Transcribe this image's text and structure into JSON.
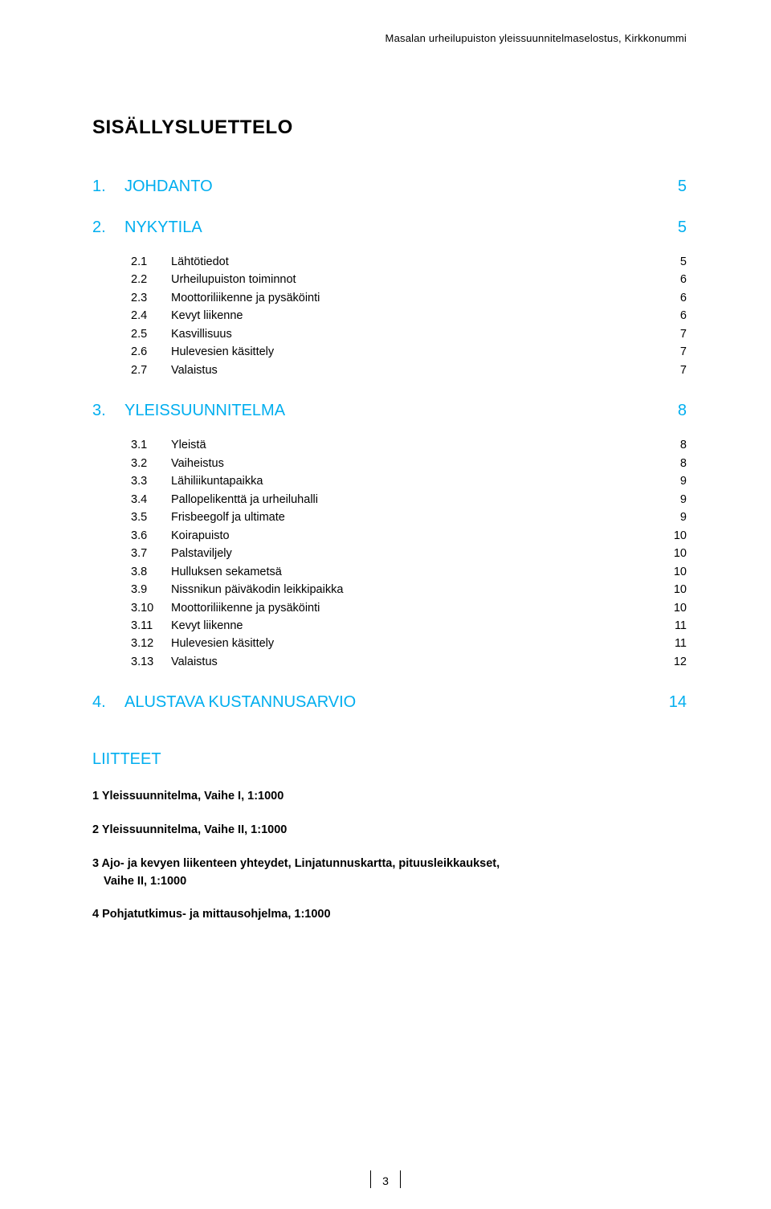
{
  "running_head": "Masalan urheilupuiston yleissuunnitelmaselostus, Kirkkonummi",
  "toc_title": "SISÄLLYSLUETTELO",
  "colors": {
    "accent": "#00aeef",
    "text": "#000000",
    "background": "#ffffff"
  },
  "fonts": {
    "title_size_pt": 18,
    "section_size_pt": 15,
    "body_size_pt": 11
  },
  "sections": [
    {
      "num": "1.",
      "label": "JOHDANTO",
      "page": "5",
      "items": []
    },
    {
      "num": "2.",
      "label": "NYKYTILA",
      "page": "5",
      "items": [
        {
          "num": "2.1",
          "label": "Lähtötiedot",
          "page": "5"
        },
        {
          "num": "2.2",
          "label": "Urheilupuiston toiminnot",
          "page": "6"
        },
        {
          "num": "2.3",
          "label": "Moottoriliikenne ja pysäköinti",
          "page": "6"
        },
        {
          "num": "2.4",
          "label": "Kevyt liikenne",
          "page": "6"
        },
        {
          "num": "2.5",
          "label": "Kasvillisuus",
          "page": "7"
        },
        {
          "num": "2.6",
          "label": "Hulevesien käsittely",
          "page": "7"
        },
        {
          "num": "2.7",
          "label": "Valaistus",
          "page": "7"
        }
      ]
    },
    {
      "num": "3.",
      "label": "YLEISSUUNNITELMA",
      "page": "8",
      "items": [
        {
          "num": "3.1",
          "label": "Yleistä",
          "page": "8"
        },
        {
          "num": "3.2",
          "label": "Vaiheistus",
          "page": "8"
        },
        {
          "num": "3.3",
          "label": "Lähiliikuntapaikka",
          "page": "9"
        },
        {
          "num": "3.4",
          "label": "Pallopelikenttä ja urheiluhalli",
          "page": "9"
        },
        {
          "num": "3.5",
          "label": "Frisbeegolf ja ultimate",
          "page": "9"
        },
        {
          "num": "3.6",
          "label": "Koirapuisto",
          "page": "10"
        },
        {
          "num": "3.7",
          "label": "Palstaviljely",
          "page": "10"
        },
        {
          "num": "3.8",
          "label": "Hulluksen sekametsä",
          "page": "10"
        },
        {
          "num": "3.9",
          "label": "Nissnikun päiväkodin leikkipaikka",
          "page": "10"
        },
        {
          "num": "3.10",
          "label": "Moottoriliikenne ja pysäköinti",
          "page": "10"
        },
        {
          "num": "3.11",
          "label": "Kevyt liikenne",
          "page": "11"
        },
        {
          "num": "3.12",
          "label": "Hulevesien käsittely",
          "page": "11"
        },
        {
          "num": "3.13",
          "label": "Valaistus",
          "page": "12"
        }
      ]
    },
    {
      "num": "4.",
      "label": "ALUSTAVA KUSTANNUSARVIO",
      "page": "14",
      "items": []
    }
  ],
  "appendix": {
    "title": "LIITTEET",
    "items": [
      {
        "text": "1 Yleissuunnitelma, Vaihe I, 1:1000"
      },
      {
        "text": "2 Yleissuunnitelma, Vaihe II, 1:1000"
      },
      {
        "text": "3 Ajo- ja kevyen liikenteen yhteydet, Linjatunnuskartta, pituusleikkaukset,",
        "indent": "Vaihe II, 1:1000"
      },
      {
        "text": "4 Pohjatutkimus- ja mittausohjelma, 1:1000"
      }
    ]
  },
  "footer": {
    "page_number": "3"
  }
}
